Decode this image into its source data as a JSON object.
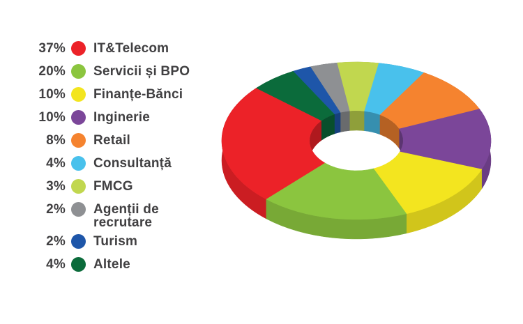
{
  "legend": {
    "items": [
      {
        "percent": "37%",
        "label": "IT&Telecom",
        "color": "#ec2228"
      },
      {
        "percent": "20%",
        "label": "Servicii și BPO",
        "color": "#8bc53f"
      },
      {
        "percent": "10%",
        "label": "Finanțe-Bănci",
        "color": "#f3e51f"
      },
      {
        "percent": "10%",
        "label": "Inginerie",
        "color": "#7b4699"
      },
      {
        "percent": "8%",
        "label": "Retail",
        "color": "#f5832f"
      },
      {
        "percent": "4%",
        "label": "Consultanță",
        "color": "#49c1ec"
      },
      {
        "percent": "3%",
        "label": "FMCG",
        "color": "#c1d74f"
      },
      {
        "percent": "2%",
        "label": "Agenții de\nrecrutare",
        "color": "#8e9093"
      },
      {
        "percent": "2%",
        "label": "Turism",
        "color": "#1e56a9"
      },
      {
        "percent": "4%",
        "label": "Altele",
        "color": "#0b6b3b"
      }
    ]
  },
  "chart_data": {
    "type": "pie",
    "style": "3d-donut",
    "title": "",
    "unit": "%",
    "legend_position": "left",
    "background": "#ffffff",
    "text_color": "#414042",
    "categories": [
      "IT&Telecom",
      "Servicii și BPO",
      "Finanțe-Bănci",
      "Inginerie",
      "Retail",
      "Consultanță",
      "FMCG",
      "Agenții de recrutare",
      "Turism",
      "Altele"
    ],
    "values": [
      37,
      20,
      10,
      10,
      8,
      4,
      3,
      2,
      2,
      4
    ],
    "colors": [
      "#ec2228",
      "#8bc53f",
      "#f3e51f",
      "#7b4699",
      "#f5832f",
      "#49c1ec",
      "#c1d74f",
      "#8e9093",
      "#1e56a9",
      "#0b6b3b"
    ],
    "display_angles_deg_clockwise_from_top": [
      [
        222,
        312
      ],
      [
        158,
        222
      ],
      [
        111,
        158
      ],
      [
        66,
        111
      ],
      [
        30,
        66
      ],
      [
        9.5,
        30
      ],
      [
        -8.3,
        9.5
      ],
      [
        340,
        351.7
      ],
      [
        332,
        340
      ],
      [
        312,
        332
      ]
    ]
  }
}
